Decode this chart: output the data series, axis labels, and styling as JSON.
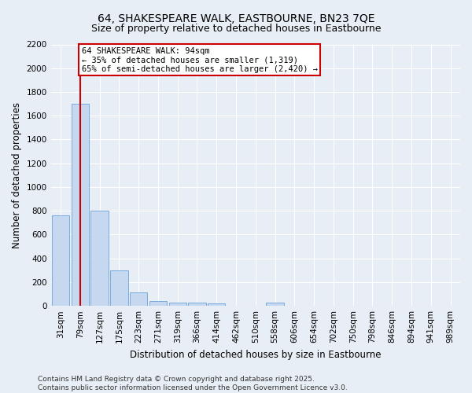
{
  "title": "64, SHAKESPEARE WALK, EASTBOURNE, BN23 7QE",
  "subtitle": "Size of property relative to detached houses in Eastbourne",
  "xlabel": "Distribution of detached houses by size in Eastbourne",
  "ylabel": "Number of detached properties",
  "categories": [
    "31sqm",
    "79sqm",
    "127sqm",
    "175sqm",
    "223sqm",
    "271sqm",
    "319sqm",
    "366sqm",
    "414sqm",
    "462sqm",
    "510sqm",
    "558sqm",
    "606sqm",
    "654sqm",
    "702sqm",
    "750sqm",
    "798sqm",
    "846sqm",
    "894sqm",
    "941sqm",
    "989sqm"
  ],
  "values": [
    760,
    1700,
    800,
    300,
    115,
    40,
    30,
    25,
    20,
    0,
    0,
    25,
    0,
    0,
    0,
    0,
    0,
    0,
    0,
    0,
    0
  ],
  "bar_color": "#c5d8f0",
  "bar_edge_color": "#7aaadd",
  "vline_x_idx": 1,
  "vline_color": "#cc0000",
  "annotation_text": "64 SHAKESPEARE WALK: 94sqm\n← 35% of detached houses are smaller (1,319)\n65% of semi-detached houses are larger (2,420) →",
  "annotation_box_color": "#ffffff",
  "annotation_box_edge": "#cc0000",
  "ylim": [
    0,
    2200
  ],
  "yticks": [
    0,
    200,
    400,
    600,
    800,
    1000,
    1200,
    1400,
    1600,
    1800,
    2000,
    2200
  ],
  "bg_color": "#e8eef5",
  "plot_bg_color": "#e8eef5",
  "footer": "Contains HM Land Registry data © Crown copyright and database right 2025.\nContains public sector information licensed under the Open Government Licence v3.0.",
  "title_fontsize": 10,
  "subtitle_fontsize": 9,
  "axis_label_fontsize": 8.5,
  "tick_fontsize": 7.5,
  "footer_fontsize": 6.5,
  "annotation_fontsize": 7.5
}
